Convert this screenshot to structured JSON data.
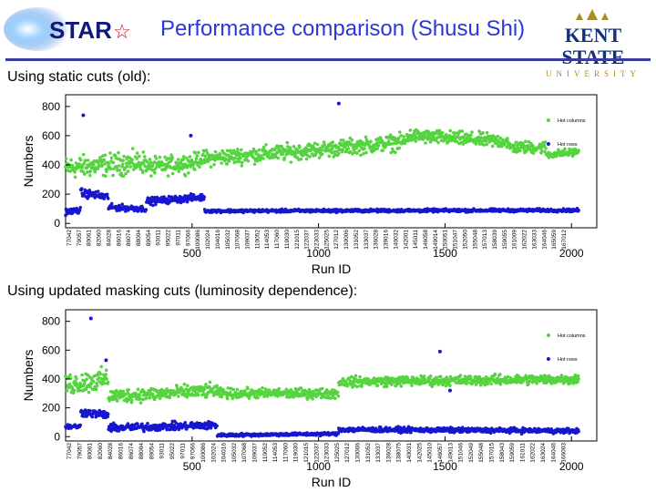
{
  "header": {
    "title": "Performance comparison (Shusu Shi)",
    "star_logo_text": "STAR",
    "kent_line1": "KENT STATE",
    "kent_line2": "UNIVERSITY"
  },
  "sections": [
    {
      "caption": "Using static cuts (old):"
    },
    {
      "caption": "Using updated masking cuts (luminosity dependence):"
    }
  ],
  "colors": {
    "hot_columns": "#55d43f",
    "hot_rows": "#1717cf",
    "title": "#2a39d6"
  },
  "chart_data": [
    {
      "type": "scatter",
      "title": "",
      "xlabel": "Run ID",
      "ylabel": "Numbers",
      "xlim": [
        0,
        2100
      ],
      "ylim": [
        -30,
        880
      ],
      "xticks": [
        500,
        1000,
        1500,
        2000
      ],
      "yticks": [
        0,
        200,
        400,
        600,
        800
      ],
      "legend_position": "right",
      "run_labels": [
        "77042",
        "79057",
        "80061",
        "82060",
        "84028",
        "86016",
        "86074",
        "88004",
        "89054",
        "93011",
        "95022",
        "97011",
        "97066",
        "100086",
        "102024",
        "104016",
        "105032",
        "107068",
        "109037",
        "110052",
        "114053",
        "117060",
        "119030",
        "121015",
        "122037",
        "123033",
        "125025",
        "127012",
        "130006",
        "131052",
        "133037",
        "136028",
        "139016",
        "140032",
        "142001",
        "145011",
        "146058",
        "149014",
        "150051",
        "151047",
        "152050",
        "155048",
        "157013",
        "158039",
        "159055",
        "161009",
        "162022",
        "163033",
        "164046",
        "165059",
        "167012"
      ],
      "series": [
        {
          "name": "Hot columns",
          "segments": [
            {
              "x": [
                0,
                320
              ],
              "y": [
                380,
                420
              ],
              "spread": 110
            },
            {
              "x": [
                320,
                520
              ],
              "y": [
                380,
                420
              ],
              "spread": 90
            },
            {
              "x": [
                520,
                980
              ],
              "y": [
                440,
                500
              ],
              "spread": 80
            },
            {
              "x": [
                980,
                1350
              ],
              "y": [
                500,
                560
              ],
              "spread": 80
            },
            {
              "x": [
                1350,
                1750
              ],
              "y": [
                600,
                560
              ],
              "spread": 70
            },
            {
              "x": [
                1750,
                1900
              ],
              "y": [
                520,
                520
              ],
              "spread": 60
            },
            {
              "x": [
                1900,
                2030
              ],
              "y": [
                470,
                490
              ],
              "spread": 40
            }
          ]
        },
        {
          "name": "Hot rows",
          "segments": [
            {
              "x": [
                0,
                60
              ],
              "y": [
                80,
                90
              ],
              "spread": 30
            },
            {
              "x": [
                60,
                170
              ],
              "y": [
                210,
                180
              ],
              "spread": 40
            },
            {
              "x": [
                170,
                320
              ],
              "y": [
                110,
                100
              ],
              "spread": 30
            },
            {
              "x": [
                320,
                550
              ],
              "y": [
                150,
                180
              ],
              "spread": 35
            },
            {
              "x": [
                550,
                2030
              ],
              "y": [
                85,
                90
              ],
              "spread": 15
            }
          ],
          "outliers": [
            [
              70,
              740
            ],
            [
              495,
              600
            ],
            [
              1080,
              820
            ]
          ]
        }
      ]
    },
    {
      "type": "scatter",
      "title": "",
      "xlabel": "Run ID",
      "ylabel": "Numbers",
      "xlim": [
        0,
        2100
      ],
      "ylim": [
        -30,
        880
      ],
      "xticks": [
        500,
        1000,
        1500,
        2000
      ],
      "yticks": [
        0,
        200,
        400,
        600,
        800
      ],
      "legend_position": "right",
      "run_labels": [
        "77042",
        "79057",
        "80061",
        "82060",
        "84028",
        "86016",
        "86074",
        "88004",
        "89054",
        "93011",
        "95022",
        "97011",
        "97066",
        "100086",
        "102024",
        "104016",
        "105032",
        "107068",
        "109037",
        "110052",
        "114053",
        "117060",
        "119030",
        "121015",
        "122037",
        "123033",
        "125025",
        "127012",
        "130006",
        "131052",
        "133037",
        "136028",
        "138075",
        "140031",
        "142025",
        "145010",
        "146057",
        "149013",
        "151046",
        "152049",
        "155048",
        "157015",
        "158043",
        "159059",
        "161011",
        "162022",
        "163024",
        "164046",
        "166003"
      ],
      "series": [
        {
          "name": "Hot columns",
          "segments": [
            {
              "x": [
                0,
                170
              ],
              "y": [
                360,
                400
              ],
              "spread": 110
            },
            {
              "x": [
                170,
                600
              ],
              "y": [
                280,
                320
              ],
              "spread": 70
            },
            {
              "x": [
                600,
                1080
              ],
              "y": [
                300,
                300
              ],
              "spread": 50
            },
            {
              "x": [
                1080,
                2030
              ],
              "y": [
                380,
                400
              ],
              "spread": 50
            }
          ]
        },
        {
          "name": "Hot rows",
          "segments": [
            {
              "x": [
                0,
                60
              ],
              "y": [
                70,
                70
              ],
              "spread": 25
            },
            {
              "x": [
                60,
                170
              ],
              "y": [
                170,
                150
              ],
              "spread": 40
            },
            {
              "x": [
                170,
                600
              ],
              "y": [
                60,
                80
              ],
              "spread": 40
            },
            {
              "x": [
                600,
                1080
              ],
              "y": [
                10,
                20
              ],
              "spread": 15
            },
            {
              "x": [
                1080,
                2030
              ],
              "y": [
                50,
                40
              ],
              "spread": 25
            }
          ],
          "outliers": [
            [
              100,
              820
            ],
            [
              160,
              530
            ],
            [
              1480,
              590
            ],
            [
              1520,
              320
            ]
          ]
        }
      ]
    }
  ]
}
